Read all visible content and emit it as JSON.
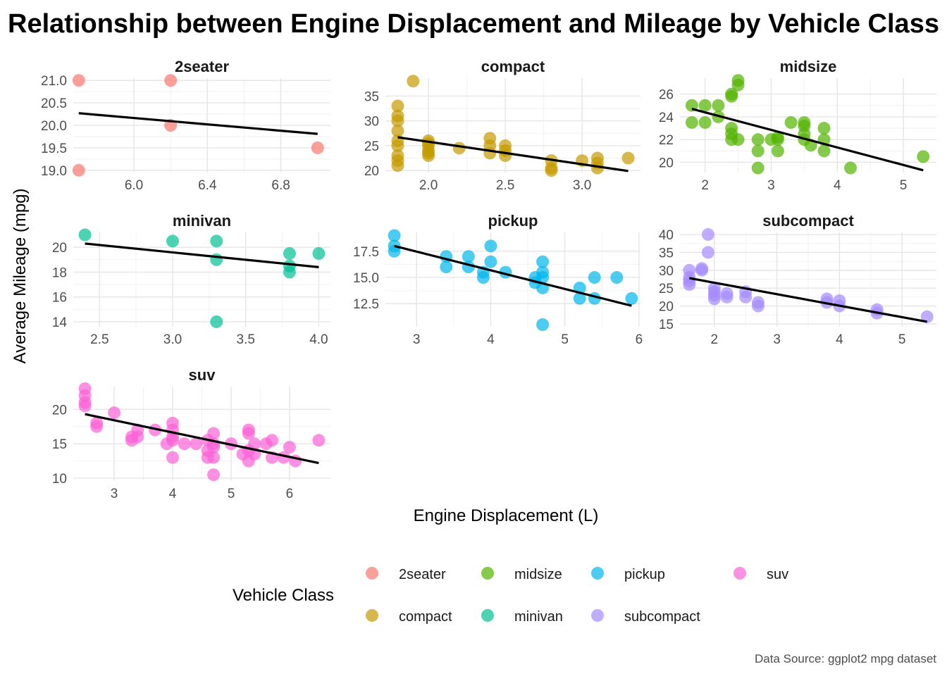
{
  "chart_data": {
    "type": "scatter",
    "title": "Relationship between Engine Displacement and Mileage by Vehicle Class",
    "xlabel": "Engine Displacement (L)",
    "ylabel": "Average Mileage (mpg)",
    "legend_title": "Vehicle Class",
    "legend_position": "bottom",
    "caption": "Data Source: ggplot2 mpg dataset",
    "grid": true,
    "trend_line": "linear fit per panel",
    "facets": [
      {
        "name": "2seater",
        "color": "#F8766D",
        "xlim": [
          5.67,
          7.07
        ],
        "ylim": [
          18.95,
          21.05
        ],
        "xticks": [
          6.0,
          6.4,
          6.8
        ],
        "xtick_labels": [
          "6.0",
          "6.4",
          "6.8"
        ],
        "yticks": [
          19,
          19.5,
          20,
          20.5,
          21
        ],
        "ytick_labels": [
          "19.0",
          "19.5",
          "20.0",
          "20.5",
          "21.0"
        ],
        "points": [
          [
            5.7,
            21
          ],
          [
            6.2,
            21
          ],
          [
            6.2,
            20
          ],
          [
            5.7,
            19
          ],
          [
            7.0,
            19.5
          ]
        ],
        "fit": [
          [
            5.7,
            20.27
          ],
          [
            7.0,
            19.81
          ]
        ]
      },
      {
        "name": "compact",
        "color": "#C49A00",
        "xlim": [
          1.72,
          3.38
        ],
        "ylim": [
          19.6,
          38.6
        ],
        "xticks": [
          2.0,
          2.5,
          3.0
        ],
        "xtick_labels": [
          "2.0",
          "2.5",
          "3.0"
        ],
        "yticks": [
          20,
          25,
          30,
          35
        ],
        "ytick_labels": [
          "20",
          "25",
          "30",
          "35"
        ],
        "points": [
          [
            1.8,
            33
          ],
          [
            1.8,
            31
          ],
          [
            1.8,
            30
          ],
          [
            1.8,
            28
          ],
          [
            1.8,
            26
          ],
          [
            1.8,
            25
          ],
          [
            1.8,
            23
          ],
          [
            1.8,
            22
          ],
          [
            1.8,
            21
          ],
          [
            1.9,
            38
          ],
          [
            2.0,
            26
          ],
          [
            2.0,
            25.5
          ],
          [
            2.0,
            25
          ],
          [
            2.0,
            24
          ],
          [
            2.0,
            23.5
          ],
          [
            2.0,
            23
          ],
          [
            2.2,
            24.5
          ],
          [
            2.4,
            26.5
          ],
          [
            2.4,
            25
          ],
          [
            2.4,
            23.5
          ],
          [
            2.5,
            25
          ],
          [
            2.5,
            24
          ],
          [
            2.5,
            23
          ],
          [
            2.8,
            22
          ],
          [
            2.8,
            20.5
          ],
          [
            2.8,
            20
          ],
          [
            3.0,
            22
          ],
          [
            3.1,
            22.5
          ],
          [
            3.1,
            21.5
          ],
          [
            3.1,
            20.5
          ],
          [
            3.3,
            22.5
          ]
        ],
        "fit": [
          [
            1.8,
            26.7
          ],
          [
            3.3,
            19.9
          ]
        ]
      },
      {
        "name": "midsize",
        "color": "#53B400",
        "xlim": [
          1.62,
          5.5
        ],
        "ylim": [
          19.1,
          27.4
        ],
        "xticks": [
          2,
          3,
          4,
          5
        ],
        "xtick_labels": [
          "2",
          "3",
          "4",
          "5"
        ],
        "yticks": [
          20,
          22,
          24,
          26
        ],
        "ytick_labels": [
          "20",
          "22",
          "24",
          "26"
        ],
        "points": [
          [
            1.8,
            25
          ],
          [
            1.8,
            23.5
          ],
          [
            2.0,
            25
          ],
          [
            2.0,
            23.5
          ],
          [
            2.2,
            25
          ],
          [
            2.2,
            24
          ],
          [
            2.4,
            26
          ],
          [
            2.4,
            25.8
          ],
          [
            2.4,
            23
          ],
          [
            2.4,
            22.5
          ],
          [
            2.4,
            22
          ],
          [
            2.5,
            27.2
          ],
          [
            2.5,
            26.8
          ],
          [
            2.5,
            22
          ],
          [
            2.8,
            22
          ],
          [
            2.8,
            21
          ],
          [
            2.8,
            19.5
          ],
          [
            3.0,
            22
          ],
          [
            3.1,
            22
          ],
          [
            3.1,
            22.2
          ],
          [
            3.1,
            21
          ],
          [
            3.3,
            23.5
          ],
          [
            3.5,
            23.5
          ],
          [
            3.5,
            23.2
          ],
          [
            3.5,
            22.5
          ],
          [
            3.5,
            22
          ],
          [
            3.6,
            21.5
          ],
          [
            3.8,
            23
          ],
          [
            3.8,
            22
          ],
          [
            3.8,
            21
          ],
          [
            4.2,
            19.5
          ],
          [
            5.3,
            20.5
          ]
        ],
        "fit": [
          [
            1.8,
            24.7
          ],
          [
            5.3,
            19.3
          ]
        ]
      },
      {
        "name": "minivan",
        "color": "#00C094",
        "xlim": [
          2.32,
          4.08
        ],
        "ylim": [
          13.6,
          21.2
        ],
        "xticks": [
          2.5,
          3.0,
          3.5,
          4.0
        ],
        "xtick_labels": [
          "2.5",
          "3.0",
          "3.5",
          "4.0"
        ],
        "yticks": [
          14,
          16,
          18,
          20
        ],
        "ytick_labels": [
          "14",
          "16",
          "18",
          "20"
        ],
        "points": [
          [
            2.4,
            21
          ],
          [
            3.0,
            20.5
          ],
          [
            3.3,
            20.5
          ],
          [
            3.3,
            19
          ],
          [
            3.3,
            14
          ],
          [
            3.8,
            19.5
          ],
          [
            3.8,
            18.5
          ],
          [
            3.8,
            18
          ],
          [
            4.0,
            19.5
          ]
        ],
        "fit": [
          [
            2.4,
            20.3
          ],
          [
            4.0,
            18.4
          ]
        ]
      },
      {
        "name": "pickup",
        "color": "#00B6EB",
        "xlim": [
          2.58,
          6.02
        ],
        "ylim": [
          10.3,
          19.3
        ],
        "xticks": [
          3,
          4,
          5,
          6
        ],
        "xtick_labels": [
          "3",
          "4",
          "5",
          "6"
        ],
        "yticks": [
          12.5,
          15.0,
          17.5
        ],
        "ytick_labels": [
          "12.5",
          "15.0",
          "17.5"
        ],
        "points": [
          [
            2.7,
            19
          ],
          [
            2.7,
            18
          ],
          [
            2.7,
            17.5
          ],
          [
            3.4,
            17
          ],
          [
            3.4,
            16
          ],
          [
            3.7,
            17
          ],
          [
            3.7,
            16
          ],
          [
            3.9,
            15.5
          ],
          [
            3.9,
            15
          ],
          [
            4.0,
            18
          ],
          [
            4.0,
            16.5
          ],
          [
            4.2,
            15.5
          ],
          [
            4.6,
            15
          ],
          [
            4.6,
            14.5
          ],
          [
            4.7,
            16.5
          ],
          [
            4.7,
            15.5
          ],
          [
            4.7,
            15
          ],
          [
            4.7,
            14
          ],
          [
            4.7,
            10.5
          ],
          [
            5.2,
            14
          ],
          [
            5.2,
            13
          ],
          [
            5.4,
            15
          ],
          [
            5.4,
            13
          ],
          [
            5.7,
            15
          ],
          [
            5.9,
            13
          ]
        ],
        "fit": [
          [
            2.7,
            18.0
          ],
          [
            5.9,
            12.3
          ]
        ]
      },
      {
        "name": "subcompact",
        "color": "#A58AFF",
        "xlim": [
          1.45,
          5.55
        ],
        "ylim": [
          14.2,
          40.6
        ],
        "xticks": [
          2,
          3,
          4,
          5
        ],
        "xtick_labels": [
          "2",
          "3",
          "4",
          "5"
        ],
        "yticks": [
          15,
          20,
          25,
          30,
          35,
          40
        ],
        "ytick_labels": [
          "15",
          "20",
          "25",
          "30",
          "35",
          "40"
        ],
        "points": [
          [
            1.6,
            30
          ],
          [
            1.6,
            28
          ],
          [
            1.6,
            27
          ],
          [
            1.6,
            26
          ],
          [
            1.8,
            30.5
          ],
          [
            1.8,
            30
          ],
          [
            1.9,
            40
          ],
          [
            1.9,
            35
          ],
          [
            2.0,
            25
          ],
          [
            2.0,
            24
          ],
          [
            2.0,
            23
          ],
          [
            2.0,
            22
          ],
          [
            2.2,
            23.5
          ],
          [
            2.2,
            22.5
          ],
          [
            2.5,
            24
          ],
          [
            2.5,
            22.5
          ],
          [
            2.7,
            21
          ],
          [
            2.7,
            20
          ],
          [
            3.8,
            22
          ],
          [
            3.8,
            21
          ],
          [
            4.0,
            21.5
          ],
          [
            4.0,
            20
          ],
          [
            4.6,
            19
          ],
          [
            4.6,
            18
          ],
          [
            5.4,
            17
          ]
        ],
        "fit": [
          [
            1.6,
            27.8
          ],
          [
            5.4,
            15.6
          ]
        ]
      },
      {
        "name": "suv",
        "color": "#FB61D7",
        "xlim": [
          2.3,
          6.7
        ],
        "ylim": [
          9.6,
          23.3
        ],
        "xticks": [
          3,
          4,
          5,
          6
        ],
        "xtick_labels": [
          "3",
          "4",
          "5",
          "6"
        ],
        "yticks": [
          10,
          15,
          20
        ],
        "ytick_labels": [
          "10",
          "15",
          "20"
        ],
        "points": [
          [
            2.5,
            23
          ],
          [
            2.5,
            22
          ],
          [
            2.5,
            21
          ],
          [
            2.5,
            20.5
          ],
          [
            2.7,
            18
          ],
          [
            2.7,
            17.5
          ],
          [
            3.0,
            19.5
          ],
          [
            3.3,
            16
          ],
          [
            3.3,
            15.5
          ],
          [
            3.4,
            17
          ],
          [
            3.4,
            16
          ],
          [
            3.7,
            17
          ],
          [
            3.9,
            15
          ],
          [
            4.0,
            18
          ],
          [
            4.0,
            17
          ],
          [
            4.0,
            16
          ],
          [
            4.0,
            15.5
          ],
          [
            4.0,
            13
          ],
          [
            4.2,
            15
          ],
          [
            4.4,
            15
          ],
          [
            4.6,
            15.5
          ],
          [
            4.6,
            14
          ],
          [
            4.6,
            13
          ],
          [
            4.7,
            16.5
          ],
          [
            4.7,
            15
          ],
          [
            4.7,
            14.5
          ],
          [
            4.7,
            13
          ],
          [
            4.7,
            10.5
          ],
          [
            5.0,
            15
          ],
          [
            5.2,
            13.5
          ],
          [
            5.3,
            17
          ],
          [
            5.3,
            16.5
          ],
          [
            5.3,
            14
          ],
          [
            5.3,
            12.5
          ],
          [
            5.4,
            15
          ],
          [
            5.4,
            13.5
          ],
          [
            5.6,
            15
          ],
          [
            5.7,
            15.5
          ],
          [
            5.7,
            13
          ],
          [
            5.9,
            13
          ],
          [
            6.0,
            14.5
          ],
          [
            6.1,
            12.5
          ],
          [
            6.5,
            15.5
          ]
        ],
        "fit": [
          [
            2.5,
            19.3
          ],
          [
            6.5,
            12.2
          ]
        ]
      }
    ],
    "legend": [
      {
        "label": "2seater",
        "color": "#F8766D"
      },
      {
        "label": "compact",
        "color": "#C49A00"
      },
      {
        "label": "midsize",
        "color": "#53B400"
      },
      {
        "label": "minivan",
        "color": "#00C094"
      },
      {
        "label": "pickup",
        "color": "#00B6EB"
      },
      {
        "label": "subcompact",
        "color": "#A58AFF"
      },
      {
        "label": "suv",
        "color": "#FB61D7"
      }
    ]
  }
}
